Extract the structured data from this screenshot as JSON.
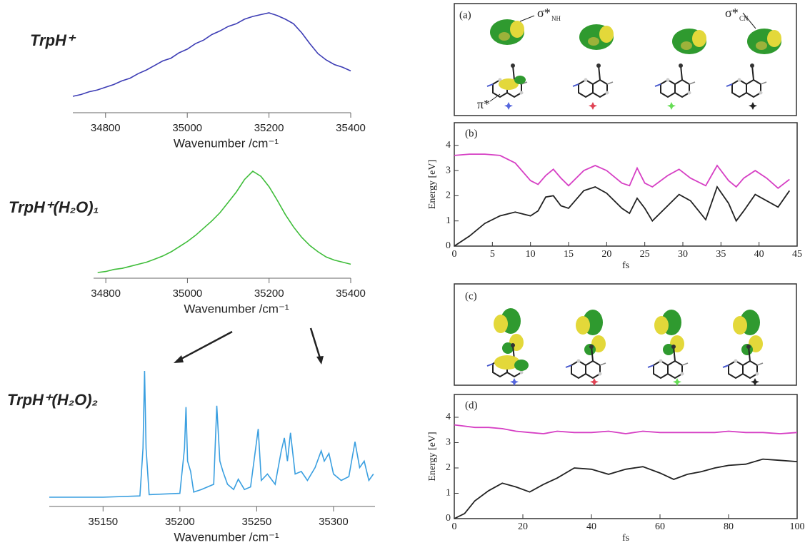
{
  "chart_data": [
    {
      "type": "spectrum",
      "title": "TrpH⁺",
      "color": "#3d3db5",
      "xlabel": "Wavenumber /cm⁻¹",
      "x": [
        34720,
        34740,
        34760,
        34780,
        34800,
        34820,
        34840,
        34860,
        34880,
        34900,
        34920,
        34940,
        34960,
        34980,
        35000,
        35020,
        35040,
        35060,
        35080,
        35100,
        35120,
        35140,
        35160,
        35180,
        35200,
        35220,
        35240,
        35260,
        35280,
        35300,
        35320,
        35340,
        35360,
        35380,
        35400
      ],
      "values": [
        0.08,
        0.1,
        0.13,
        0.15,
        0.18,
        0.21,
        0.25,
        0.28,
        0.33,
        0.37,
        0.42,
        0.47,
        0.5,
        0.56,
        0.6,
        0.66,
        0.7,
        0.76,
        0.8,
        0.85,
        0.88,
        0.93,
        0.96,
        0.98,
        1.0,
        0.97,
        0.93,
        0.88,
        0.78,
        0.66,
        0.55,
        0.48,
        0.43,
        0.4,
        0.36
      ],
      "xlim": [
        34720,
        35400
      ],
      "xticks": [
        34800,
        35000,
        35200,
        35400
      ]
    },
    {
      "type": "spectrum",
      "title": "TrpH⁺(H₂O)₁",
      "color": "#3fbd3a",
      "xlabel": "Wavenumber /cm⁻¹",
      "x": [
        34780,
        34800,
        34820,
        34840,
        34860,
        34880,
        34900,
        34920,
        34940,
        34960,
        34980,
        35000,
        35020,
        35040,
        35060,
        35080,
        35100,
        35120,
        35140,
        35160,
        35180,
        35200,
        35220,
        35240,
        35260,
        35280,
        35300,
        35320,
        35340,
        35360,
        35380,
        35400
      ],
      "values": [
        0.02,
        0.03,
        0.05,
        0.06,
        0.08,
        0.1,
        0.12,
        0.15,
        0.18,
        0.22,
        0.27,
        0.32,
        0.38,
        0.45,
        0.52,
        0.6,
        0.7,
        0.8,
        0.92,
        1.0,
        0.95,
        0.85,
        0.72,
        0.58,
        0.46,
        0.36,
        0.28,
        0.22,
        0.17,
        0.14,
        0.12,
        0.1
      ],
      "xlim": [
        34770,
        35400
      ],
      "xticks": [
        34800,
        35000,
        35200,
        35400
      ]
    },
    {
      "type": "spectrum",
      "title": "TrpH⁺(H₂O)₂",
      "color": "#3a9fe0",
      "xlabel": "Wavenumber /cm⁻¹",
      "x": [
        35115,
        35150,
        35174,
        35176,
        35177,
        35178,
        35180,
        35200,
        35203,
        35204,
        35205,
        35207,
        35209,
        35214,
        35222,
        35224,
        35226,
        35228,
        35231,
        35235,
        35238,
        35242,
        35246,
        35251,
        35253,
        35257,
        35262,
        35266,
        35268,
        35270,
        35272,
        35275,
        35279,
        35283,
        35288,
        35292,
        35294,
        35297,
        35300,
        35305,
        35310,
        35314,
        35317,
        35320,
        35323,
        35326
      ],
      "values": [
        0.02,
        0.02,
        0.03,
        0.4,
        1.0,
        0.4,
        0.04,
        0.05,
        0.4,
        0.72,
        0.3,
        0.22,
        0.06,
        0.08,
        0.12,
        0.73,
        0.3,
        0.22,
        0.12,
        0.08,
        0.16,
        0.08,
        0.1,
        0.55,
        0.15,
        0.2,
        0.12,
        0.38,
        0.48,
        0.3,
        0.52,
        0.2,
        0.22,
        0.15,
        0.25,
        0.38,
        0.3,
        0.36,
        0.2,
        0.15,
        0.18,
        0.45,
        0.25,
        0.3,
        0.15,
        0.2
      ],
      "xlim": [
        35115,
        35327
      ],
      "xticks": [
        35150,
        35200,
        35250,
        35300
      ]
    },
    {
      "type": "line",
      "panel_label": "(b)",
      "xlabel": "fs",
      "ylabel": "Energy [eV]",
      "x": [
        0,
        2,
        4,
        6,
        8,
        10,
        11,
        12,
        13,
        14,
        15,
        17,
        18.5,
        20,
        22,
        23,
        24,
        25,
        26,
        28,
        29.5,
        31,
        33,
        34.5,
        36,
        37,
        38,
        39.5,
        41,
        42.5,
        44
      ],
      "series": [
        {
          "color": "#d63fc4",
          "values": [
            3.6,
            3.65,
            3.65,
            3.6,
            3.3,
            2.6,
            2.45,
            2.8,
            3.05,
            2.7,
            2.4,
            3.0,
            3.2,
            3.0,
            2.5,
            2.4,
            3.1,
            2.5,
            2.35,
            2.8,
            3.05,
            2.7,
            2.4,
            3.2,
            2.6,
            2.35,
            2.7,
            3.0,
            2.7,
            2.3,
            2.65
          ]
        },
        {
          "color": "#222222",
          "values": [
            0,
            0.4,
            0.9,
            1.2,
            1.35,
            1.2,
            1.4,
            1.95,
            2.0,
            1.6,
            1.5,
            2.2,
            2.35,
            2.1,
            1.5,
            1.3,
            1.9,
            1.5,
            1.0,
            1.6,
            2.05,
            1.8,
            1.05,
            2.35,
            1.7,
            1.0,
            1.4,
            2.05,
            1.8,
            1.55,
            2.2
          ]
        }
      ],
      "xlim": [
        0,
        45
      ],
      "xticks": [
        0,
        5,
        10,
        15,
        20,
        25,
        30,
        35,
        40,
        45
      ],
      "ylim": [
        0,
        4.9
      ],
      "yticks": [
        0,
        1,
        2,
        3,
        4
      ]
    },
    {
      "type": "line",
      "panel_label": "(d)",
      "xlabel": "fs",
      "ylabel": "Energy [eV]",
      "x": [
        0,
        3,
        6,
        10,
        14,
        18,
        22,
        26,
        30,
        35,
        40,
        45,
        50,
        55,
        60,
        64,
        68,
        72,
        76,
        80,
        85,
        90,
        95,
        100
      ],
      "series": [
        {
          "color": "#d63fc4",
          "values": [
            3.7,
            3.65,
            3.6,
            3.6,
            3.55,
            3.45,
            3.4,
            3.35,
            3.45,
            3.4,
            3.4,
            3.45,
            3.35,
            3.45,
            3.4,
            3.4,
            3.4,
            3.4,
            3.4,
            3.45,
            3.4,
            3.4,
            3.35,
            3.4
          ]
        },
        {
          "color": "#222222",
          "values": [
            0,
            0.2,
            0.7,
            1.1,
            1.4,
            1.25,
            1.05,
            1.35,
            1.6,
            2.0,
            1.95,
            1.75,
            1.95,
            2.05,
            1.8,
            1.55,
            1.75,
            1.85,
            2.0,
            2.1,
            2.15,
            2.35,
            2.3,
            2.25
          ]
        }
      ],
      "xlim": [
        0,
        100
      ],
      "xticks": [
        0,
        20,
        40,
        60,
        80,
        100
      ],
      "ylim": [
        0,
        4.9
      ],
      "yticks": [
        0,
        1,
        2,
        3,
        4
      ]
    }
  ],
  "panels": {
    "a": {
      "label": "(a)",
      "orbitals": [
        {
          "symbol": "σ*",
          "sub": "NH"
        },
        {
          "symbol": "σ*",
          "sub": "CN"
        },
        {
          "symbol": "π*"
        }
      ]
    },
    "c": {
      "label": "(c)"
    }
  }
}
